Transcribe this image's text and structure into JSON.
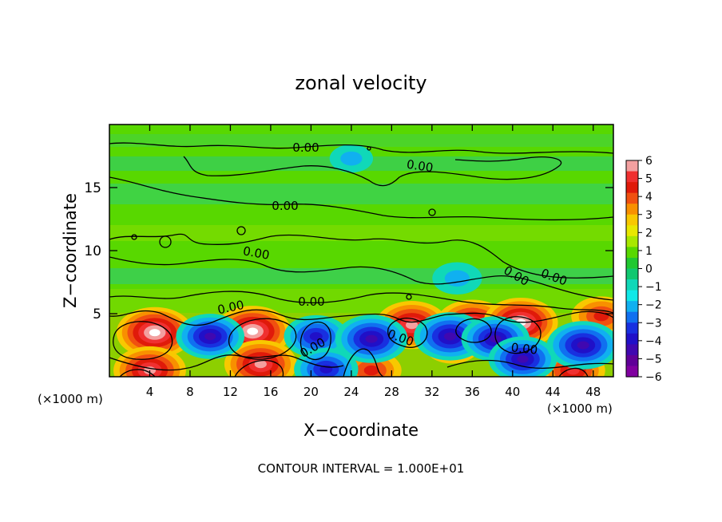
{
  "chart_data": {
    "type": "heatmap",
    "title": "zonal velocity",
    "xlabel": "X−coordinate",
    "ylabel": "Z−coordinate",
    "x_unit_left": "(×1000 m)",
    "x_unit_right": "(×1000 m)",
    "xlim": [
      0,
      50
    ],
    "ylim": [
      0,
      20
    ],
    "x_ticks": [
      4,
      8,
      12,
      16,
      20,
      24,
      28,
      32,
      36,
      40,
      44,
      48
    ],
    "y_ticks": [
      5,
      10,
      15
    ],
    "footer": "CONTOUR INTERVAL = 1.000E+01",
    "contour_labels": [
      "0.00",
      "0.00",
      "0.00",
      "0.00",
      "0.00",
      "0.00",
      "0.00",
      "0.00",
      "0.00",
      "0.00",
      "0.00"
    ],
    "colorbar": {
      "min": -6,
      "max": 6,
      "tick_labels": [
        "6",
        "5",
        "4",
        "3",
        "2",
        "1",
        "0",
        "−1",
        "−2",
        "−3",
        "−4",
        "−5",
        "−6"
      ],
      "colors": [
        "#f3a0a0",
        "#f03030",
        "#e01a0a",
        "#f05010",
        "#f89000",
        "#f8c800",
        "#e8e800",
        "#a8e800",
        "#58d800",
        "#20c830",
        "#10c870",
        "#10d8b8",
        "#10e8e8",
        "#10b0f0",
        "#1070f0",
        "#1830e0",
        "#2010c8",
        "#4008b0",
        "#600098",
        "#8000a0"
      ]
    },
    "anomalies": [
      {
        "x": 4.5,
        "z": 3.5,
        "sign": "positive",
        "strength": 1.0
      },
      {
        "x": 14.2,
        "z": 3.6,
        "sign": "positive",
        "strength": 1.0
      },
      {
        "x": 30.0,
        "z": 4.1,
        "sign": "positive",
        "strength": 0.9
      },
      {
        "x": 36.0,
        "z": 4.2,
        "sign": "positive",
        "strength": 0.9
      },
      {
        "x": 40.8,
        "z": 4.3,
        "sign": "positive",
        "strength": 0.95
      },
      {
        "x": 48.8,
        "z": 4.8,
        "sign": "positive",
        "strength": 0.6
      },
      {
        "x": 4.0,
        "z": 0.5,
        "sign": "positive",
        "strength": 0.9
      },
      {
        "x": 15.0,
        "z": 1.0,
        "sign": "positive",
        "strength": 0.9
      },
      {
        "x": 26.0,
        "z": 0.5,
        "sign": "positive",
        "strength": 0.6
      },
      {
        "x": 46.0,
        "z": 0.5,
        "sign": "positive",
        "strength": 0.7
      },
      {
        "x": 34.0,
        "z": 2.5,
        "sign": "positive",
        "strength": 0.5
      },
      {
        "x": 10.0,
        "z": 3.2,
        "sign": "negative",
        "strength": 0.8
      },
      {
        "x": 20.5,
        "z": 3.2,
        "sign": "negative",
        "strength": 0.7
      },
      {
        "x": 26.0,
        "z": 3.0,
        "sign": "negative",
        "strength": 0.9
      },
      {
        "x": 33.8,
        "z": 3.2,
        "sign": "negative",
        "strength": 0.9
      },
      {
        "x": 38.3,
        "z": 3.0,
        "sign": "negative",
        "strength": 0.8
      },
      {
        "x": 41.0,
        "z": 1.4,
        "sign": "negative",
        "strength": 0.8
      },
      {
        "x": 47.0,
        "z": 2.5,
        "sign": "negative",
        "strength": 0.9
      },
      {
        "x": 21.5,
        "z": 0.6,
        "sign": "negative",
        "strength": 0.7
      },
      {
        "x": 34.5,
        "z": 7.8,
        "sign": "negative",
        "strength": 0.35
      },
      {
        "x": 24.0,
        "z": 17.3,
        "sign": "negative",
        "strength": 0.2
      }
    ]
  }
}
